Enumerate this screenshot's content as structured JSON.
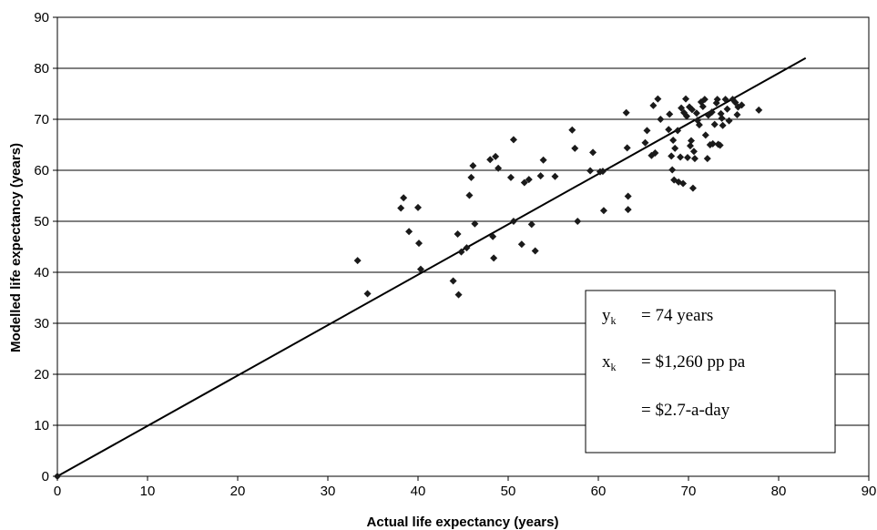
{
  "chart_data": {
    "type": "scatter",
    "xlabel": "Actual life expectancy (years)",
    "ylabel": "Modelled life expectancy (years)",
    "xlim": [
      0,
      90
    ],
    "ylim": [
      0,
      90
    ],
    "x_ticks": [
      "0",
      "10",
      "20",
      "30",
      "40",
      "50",
      "60",
      "70",
      "80",
      "90"
    ],
    "y_ticks": [
      "0",
      "10",
      "20",
      "30",
      "40",
      "50",
      "60",
      "70",
      "80",
      "90"
    ],
    "grid": "horizontal",
    "line": {
      "x": [
        0,
        83
      ],
      "y": [
        0,
        82
      ]
    },
    "annotation": {
      "line1_sym": "y",
      "line1_sub": "k",
      "line1_val": "= 74 years",
      "line2_sym": "x",
      "line2_sub": "k",
      "line2_val": "= $1,260 pp pa",
      "line3_val": "= $2.7-a-day"
    },
    "points": [
      [
        0,
        0
      ],
      [
        33.3,
        42.3
      ],
      [
        34.4,
        35.8
      ],
      [
        38.1,
        52.6
      ],
      [
        38.4,
        54.6
      ],
      [
        39,
        48
      ],
      [
        40,
        52.7
      ],
      [
        40.1,
        45.7
      ],
      [
        40.3,
        40.6
      ],
      [
        43.9,
        38.3
      ],
      [
        44.4,
        47.5
      ],
      [
        44.5,
        35.6
      ],
      [
        44.8,
        44
      ],
      [
        45.4,
        44.8
      ],
      [
        45.7,
        55.1
      ],
      [
        45.9,
        58.6
      ],
      [
        46.1,
        60.9
      ],
      [
        46.3,
        49.5
      ],
      [
        48,
        62.1
      ],
      [
        48.3,
        47
      ],
      [
        48.4,
        42.8
      ],
      [
        48.6,
        62.7
      ],
      [
        48.9,
        60.4
      ],
      [
        50.3,
        58.6
      ],
      [
        50.6,
        66
      ],
      [
        50.6,
        50
      ],
      [
        51.5,
        45.5
      ],
      [
        51.8,
        57.6
      ],
      [
        52.3,
        58.2
      ],
      [
        52.6,
        49.4
      ],
      [
        53,
        44.2
      ],
      [
        53.6,
        58.9
      ],
      [
        53.9,
        62
      ],
      [
        55.2,
        58.8
      ],
      [
        57.1,
        67.9
      ],
      [
        57.4,
        64.3
      ],
      [
        57.7,
        50
      ],
      [
        59.1,
        59.9
      ],
      [
        59.4,
        63.5
      ],
      [
        60.2,
        59.7
      ],
      [
        60.6,
        52.1
      ],
      [
        60.5,
        59.8
      ],
      [
        63.1,
        71.3
      ],
      [
        63.2,
        64.4
      ],
      [
        63.3,
        54.9
      ],
      [
        63.3,
        52.3
      ],
      [
        65.2,
        65.4
      ],
      [
        65.4,
        67.8
      ],
      [
        65.9,
        62.9
      ],
      [
        66.1,
        72.7
      ],
      [
        66.3,
        63.4
      ],
      [
        66.6,
        74
      ],
      [
        66.9,
        70
      ],
      [
        67.8,
        68
      ],
      [
        67.9,
        71
      ],
      [
        68.1,
        62.8
      ],
      [
        68.2,
        60.1
      ],
      [
        68.3,
        65.9
      ],
      [
        68.4,
        58.1
      ],
      [
        68.5,
        64.3
      ],
      [
        68.8,
        67.8
      ],
      [
        68.9,
        57.7
      ],
      [
        69.1,
        62.6
      ],
      [
        69.2,
        72.2
      ],
      [
        69.4,
        57.4
      ],
      [
        69.5,
        71.3
      ],
      [
        69.7,
        74
      ],
      [
        69.8,
        70.6
      ],
      [
        69.9,
        62.5
      ],
      [
        70.1,
        72.4
      ],
      [
        70.2,
        64.8
      ],
      [
        70.3,
        65.8
      ],
      [
        70.4,
        71.9
      ],
      [
        70.5,
        56.5
      ],
      [
        70.6,
        63.7
      ],
      [
        70.7,
        62.3
      ],
      [
        70.9,
        71.2
      ],
      [
        71,
        69.8
      ],
      [
        71.2,
        68.9
      ],
      [
        71.4,
        73.4
      ],
      [
        71.6,
        72.5
      ],
      [
        71.8,
        73.9
      ],
      [
        71.9,
        66.9
      ],
      [
        72.1,
        62.3
      ],
      [
        72.2,
        70.8
      ],
      [
        72.4,
        65
      ],
      [
        72.6,
        71.4
      ],
      [
        72.7,
        65.2
      ],
      [
        72.9,
        69
      ],
      [
        73.1,
        73.2
      ],
      [
        73.2,
        73.9
      ],
      [
        73.3,
        65.1
      ],
      [
        73.5,
        64.9
      ],
      [
        73.6,
        71.1
      ],
      [
        73.7,
        70.2
      ],
      [
        73.8,
        68.8
      ],
      [
        74.1,
        73.9
      ],
      [
        74.3,
        72
      ],
      [
        74.5,
        69.7
      ],
      [
        74.9,
        73.9
      ],
      [
        75.2,
        73.3
      ],
      [
        75.4,
        70.9
      ],
      [
        75.5,
        72.4
      ],
      [
        75.9,
        72.8
      ],
      [
        77.8,
        71.8
      ]
    ]
  }
}
